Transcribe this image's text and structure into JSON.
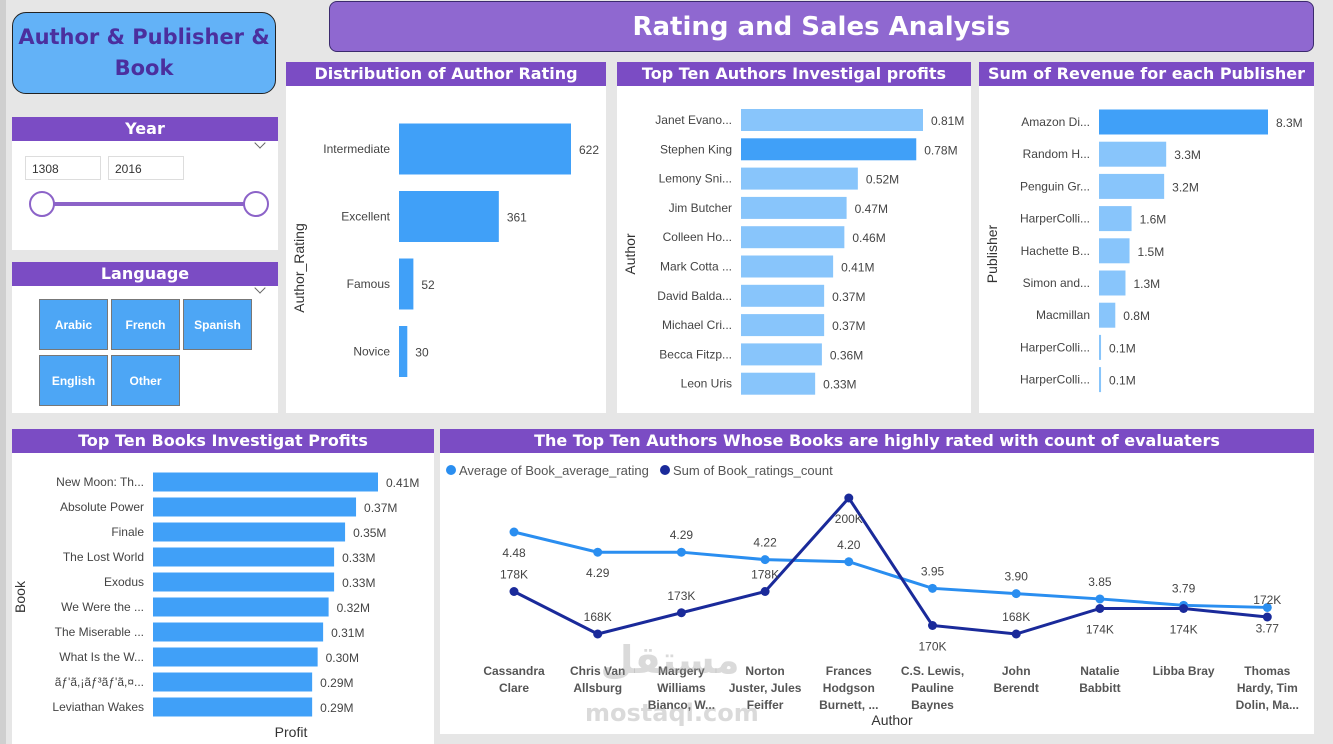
{
  "app_title": "Author & Publisher & Book",
  "dashboard_title": "Rating and Sales Analysis",
  "year_filter": {
    "title": "Year",
    "start": "1308",
    "end": "2016",
    "min": 1308,
    "max": 2016,
    "value_start": 1308,
    "value_end": 2016
  },
  "language_filter": {
    "title": "Language",
    "options": [
      "Arabic",
      "French",
      "Spanish",
      "English",
      "Other"
    ]
  },
  "watermark": {
    "arabic": "مستقل",
    "latin": "mostaql.com"
  },
  "colors": {
    "purple_header": "#7b4cc4",
    "title_bg": "#8f68d0",
    "bar_dark": "#40a0f8",
    "bar_light": "#88c5fb",
    "line_light": "#2a8ef0",
    "line_dark": "#1a2a9a"
  },
  "chart_data": [
    {
      "id": "author_rating",
      "type": "bar",
      "orientation": "horizontal",
      "title": "Distribution of Author Rating",
      "ylabel": "Author_Rating",
      "xlabel": "",
      "categories": [
        "Intermediate",
        "Excellent",
        "Famous",
        "Novice"
      ],
      "values": [
        622,
        361,
        52,
        30
      ],
      "labels": [
        "622",
        "361",
        "52",
        "30"
      ]
    },
    {
      "id": "author_profits",
      "type": "bar",
      "orientation": "horizontal",
      "title": "Top Ten Authors Investigal profits",
      "ylabel": "Author",
      "xlabel": "",
      "categories": [
        "Janet Evano...",
        "Stephen King",
        "Lemony Sni...",
        "Jim Butcher",
        "Colleen Ho...",
        "Mark Cotta ...",
        "David Balda...",
        "Michael Cri...",
        "Becca Fitzp...",
        "Leon Uris"
      ],
      "values": [
        0.81,
        0.78,
        0.52,
        0.47,
        0.46,
        0.41,
        0.37,
        0.37,
        0.36,
        0.33
      ],
      "labels": [
        "0.81M",
        "0.78M",
        "0.52M",
        "0.47M",
        "0.46M",
        "0.41M",
        "0.37M",
        "0.37M",
        "0.36M",
        "0.33M"
      ],
      "highlight": [
        1
      ]
    },
    {
      "id": "publisher_revenue",
      "type": "bar",
      "orientation": "horizontal",
      "title": "Sum of Revenue for each Publisher",
      "ylabel": "Publisher",
      "xlabel": "",
      "categories": [
        "Amazon Di...",
        "Random H...",
        "Penguin Gr...",
        "HarperColli...",
        "Hachette B...",
        "Simon and...",
        "Macmillan",
        "HarperColli...",
        "HarperColli..."
      ],
      "values": [
        8.3,
        3.3,
        3.2,
        1.6,
        1.5,
        1.3,
        0.8,
        0.1,
        0.1
      ],
      "labels": [
        "8.3M",
        "3.3M",
        "3.2M",
        "1.6M",
        "1.5M",
        "1.3M",
        "0.8M",
        "0.1M",
        "0.1M"
      ],
      "highlight": [
        0
      ]
    },
    {
      "id": "book_profits",
      "type": "bar",
      "orientation": "horizontal",
      "title": "Top Ten Books Investigat Profits",
      "ylabel": "Book",
      "xlabel": "Profit",
      "categories": [
        "New Moon: Th...",
        "Absolute Power",
        "Finale",
        "The Lost World",
        "Exodus",
        "We Were the ...",
        "The Miserable ...",
        "What Is the W...",
        "ãƒ'ã,¡ãƒ³ãƒ'ã,¤...",
        "Leviathan Wakes"
      ],
      "values": [
        0.41,
        0.37,
        0.35,
        0.33,
        0.33,
        0.32,
        0.31,
        0.3,
        0.29,
        0.29
      ],
      "labels": [
        "0.41M",
        "0.37M",
        "0.35M",
        "0.33M",
        "0.33M",
        "0.32M",
        "0.31M",
        "0.30M",
        "0.29M",
        "0.29M"
      ]
    },
    {
      "id": "author_ratings_line",
      "type": "line",
      "title": "The Top Ten Authors Whose Books are highly rated with count of evaluaters",
      "xlabel": "Author",
      "legend_position": "top-left",
      "categories": [
        [
          "Cassandra",
          "Clare"
        ],
        [
          "Chris Van",
          "Allsburg"
        ],
        [
          "Margery",
          "Williams",
          "Bianco, W..."
        ],
        [
          "Norton",
          "Juster, Jules",
          "Feiffer"
        ],
        [
          "Frances",
          "Hodgson",
          "Burnett, ..."
        ],
        [
          "C.S. Lewis,",
          "Pauline",
          "Baynes"
        ],
        [
          "John",
          "Berendt"
        ],
        [
          "Natalie",
          "Babbitt"
        ],
        [
          "Libba Bray"
        ],
        [
          "Thomas",
          "Hardy, Tim",
          "Dolin, Ma..."
        ]
      ],
      "series": [
        {
          "name": "Average of Book_average_rating",
          "values": [
            4.48,
            4.29,
            4.29,
            4.22,
            4.2,
            3.95,
            3.9,
            3.85,
            3.79,
            3.77
          ],
          "labels": [
            "4.48",
            "4.29",
            "4.29",
            "4.22",
            "4.20",
            "3.95",
            "3.90",
            "3.85",
            "3.79",
            "3.77"
          ],
          "range": [
            3.2,
            4.8
          ]
        },
        {
          "name": "Sum of Book_ratings_count",
          "values": [
            178000,
            168000,
            173000,
            178000,
            200000,
            170000,
            168000,
            174000,
            174000,
            172000
          ],
          "labels": [
            "178K",
            "168K",
            "173K",
            "178K",
            "200K",
            "170K",
            "168K",
            "174K",
            "174K",
            "172K"
          ],
          "range": [
            160000,
            200000
          ]
        }
      ]
    }
  ]
}
